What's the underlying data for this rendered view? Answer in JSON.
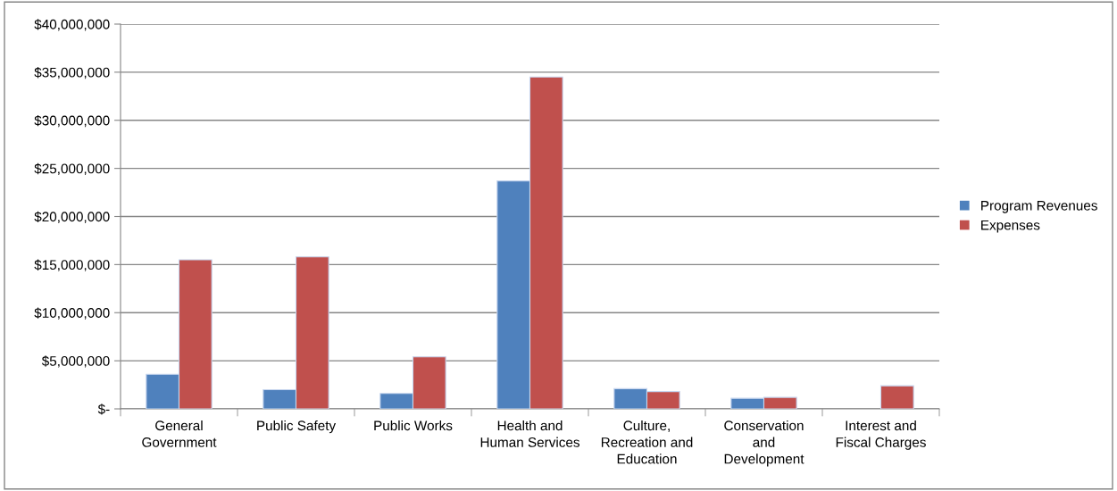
{
  "chart_data": {
    "type": "bar",
    "categories": [
      "General Government",
      "Public Safety",
      "Public Works",
      "Health and Human Services",
      "Culture, Recreation and Education",
      "Conservation and Development",
      "Interest and Fiscal Charges"
    ],
    "series": [
      {
        "name": "Program Revenues",
        "color": "#4f81bd",
        "values": [
          3600000,
          2000000,
          1600000,
          23700000,
          2100000,
          1100000,
          0
        ]
      },
      {
        "name": "Expenses",
        "color": "#c0504d",
        "values": [
          15500000,
          15800000,
          5400000,
          34500000,
          1800000,
          1200000,
          2400000
        ]
      }
    ],
    "ylim": [
      0,
      40000000
    ],
    "yticks": [
      {
        "value": 0,
        "label": "$-"
      },
      {
        "value": 5000000,
        "label": "$5,000,000"
      },
      {
        "value": 10000000,
        "label": "$10,000,000"
      },
      {
        "value": 15000000,
        "label": "$15,000,000"
      },
      {
        "value": 20000000,
        "label": "$20,000,000"
      },
      {
        "value": 25000000,
        "label": "$25,000,000"
      },
      {
        "value": 30000000,
        "label": "$30,000,000"
      },
      {
        "value": 35000000,
        "label": "$35,000,000"
      },
      {
        "value": 40000000,
        "label": "$40,000,000"
      }
    ],
    "grid": "y",
    "legend": "right"
  }
}
